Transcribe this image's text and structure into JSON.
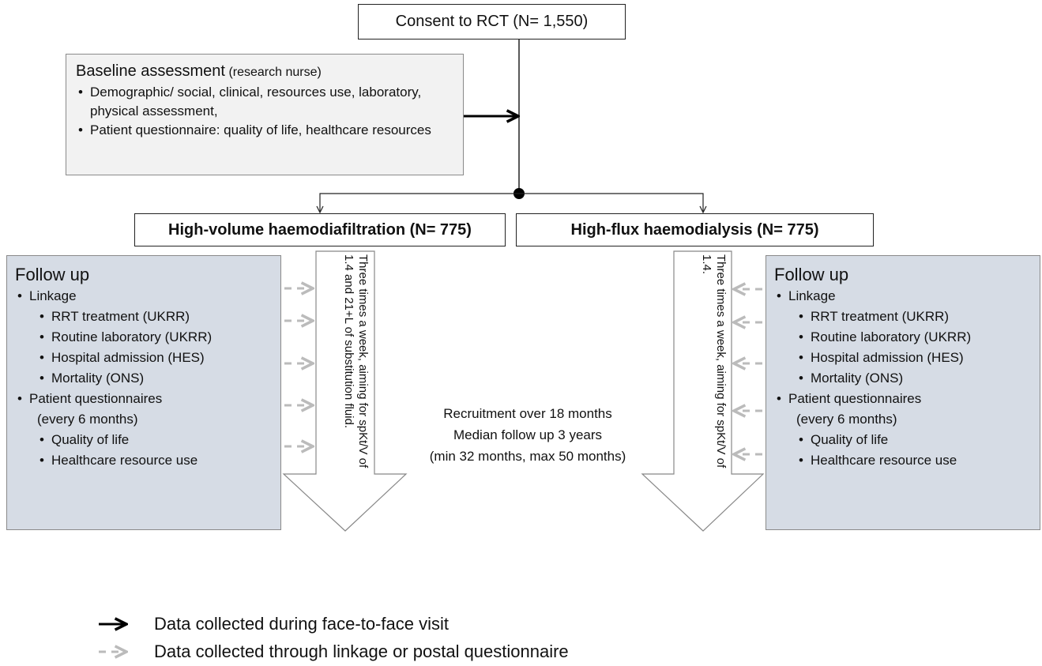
{
  "consent": "Consent to RCT (N= 1,550)",
  "baseline": {
    "title": "Baseline assessment",
    "subtitle": "(research nurse)",
    "items": [
      "Demographic/ social, clinical, resources use, laboratory, physical assessment,",
      "Patient questionnaire: quality of life, healthcare resources"
    ]
  },
  "arms": [
    {
      "label": "High-volume haemodiafiltration (N= 775)",
      "arrow_text": "Three times a week, aiming for spKt/V of 1.4 and 21+L of substitution fluid.",
      "follow_up": {
        "title": "Follow up",
        "groups": [
          {
            "label": "Linkage",
            "items": [
              "RRT treatment (UKRR)",
              "Routine laboratory (UKRR)",
              "Hospital admission (HES)",
              "Mortality (ONS)"
            ]
          },
          {
            "label": "Patient questionnaires",
            "note": "(every 6 months)",
            "items": [
              "Quality of life",
              "Healthcare resource use"
            ]
          }
        ]
      }
    },
    {
      "label": "High-flux haemodialysis (N= 775)",
      "arrow_text": "Three times a week, aiming for spKt/V of 1.4.",
      "follow_up": {
        "title": "Follow up",
        "groups": [
          {
            "label": "Linkage",
            "items": [
              "RRT treatment (UKRR)",
              "Routine laboratory (UKRR)",
              "Hospital admission (HES)",
              "Mortality (ONS)"
            ]
          },
          {
            "label": "Patient questionnaires",
            "note": "(every 6 months)",
            "items": [
              "Quality of life",
              "Healthcare resource use"
            ]
          }
        ]
      }
    }
  ],
  "recruitment": [
    "Recruitment over 18 months",
    "Median follow up 3 years",
    "(min 32 months, max 50 months)"
  ],
  "legend": [
    "Data collected during face-to-face visit",
    "Data collected through linkage or postal questionnaire"
  ]
}
